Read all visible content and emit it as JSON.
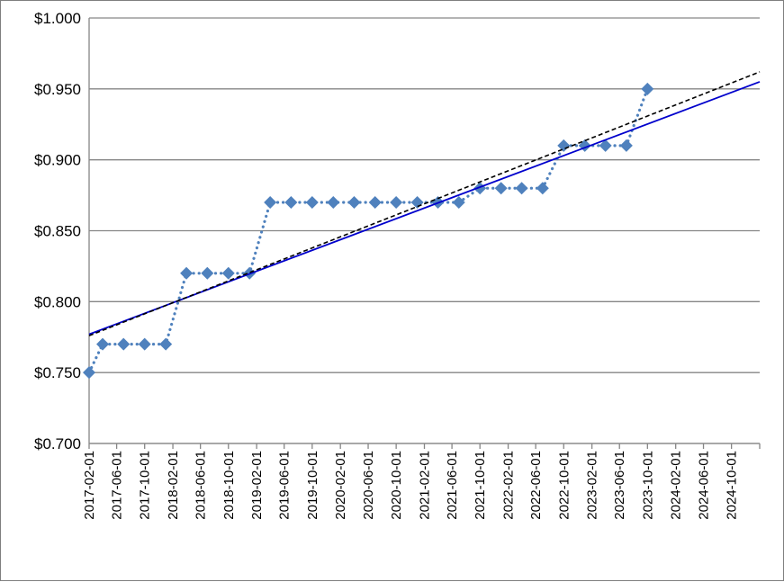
{
  "chart_data": {
    "type": "scatter",
    "title": "",
    "xlabel": "",
    "ylabel": "",
    "x_tick_labels": [
      "2017-02-01",
      "2017-06-01",
      "2017-10-01",
      "2018-02-01",
      "2018-06-01",
      "2018-10-01",
      "2019-02-01",
      "2019-06-01",
      "2019-10-01",
      "2020-02-01",
      "2020-06-01",
      "2020-10-01",
      "2021-02-01",
      "2021-06-01",
      "2021-10-01",
      "2022-02-01",
      "2022-06-01",
      "2022-10-01",
      "2023-02-01",
      "2023-06-01",
      "2023-10-01",
      "2024-02-01",
      "2024-06-01",
      "2024-10-01"
    ],
    "y_tick_labels": [
      "$0.700",
      "$0.750",
      "$0.800",
      "$0.850",
      "$0.900",
      "$0.950",
      "$1.000"
    ],
    "ylim": [
      0.7,
      1.0
    ],
    "xlim": [
      "2017-02-01",
      "2025-02-01"
    ],
    "grid": "horizontal",
    "legend": "none",
    "series": [
      {
        "style": "diamond markers with dotted connecting line",
        "color": "#4f81bd",
        "points": [
          {
            "x": "2017-02-01",
            "y": 0.75
          },
          {
            "x": "2017-04-01",
            "y": 0.77
          },
          {
            "x": "2017-07-01",
            "y": 0.77
          },
          {
            "x": "2017-10-01",
            "y": 0.77
          },
          {
            "x": "2018-01-01",
            "y": 0.77
          },
          {
            "x": "2018-04-01",
            "y": 0.82
          },
          {
            "x": "2018-07-01",
            "y": 0.82
          },
          {
            "x": "2018-10-01",
            "y": 0.82
          },
          {
            "x": "2019-01-01",
            "y": 0.82
          },
          {
            "x": "2019-04-01",
            "y": 0.87
          },
          {
            "x": "2019-07-01",
            "y": 0.87
          },
          {
            "x": "2019-10-01",
            "y": 0.87
          },
          {
            "x": "2020-01-01",
            "y": 0.87
          },
          {
            "x": "2020-04-01",
            "y": 0.87
          },
          {
            "x": "2020-07-01",
            "y": 0.87
          },
          {
            "x": "2020-10-01",
            "y": 0.87
          },
          {
            "x": "2021-01-01",
            "y": 0.87
          },
          {
            "x": "2021-04-01",
            "y": 0.87
          },
          {
            "x": "2021-07-01",
            "y": 0.87
          },
          {
            "x": "2021-10-01",
            "y": 0.88
          },
          {
            "x": "2022-01-01",
            "y": 0.88
          },
          {
            "x": "2022-04-01",
            "y": 0.88
          },
          {
            "x": "2022-07-01",
            "y": 0.88
          },
          {
            "x": "2022-10-01",
            "y": 0.91
          },
          {
            "x": "2023-01-01",
            "y": 0.91
          },
          {
            "x": "2023-04-01",
            "y": 0.91
          },
          {
            "x": "2023-07-01",
            "y": 0.91
          },
          {
            "x": "2023-10-01",
            "y": 0.95
          }
        ]
      }
    ],
    "trendlines": [
      {
        "style": "solid",
        "color": "#0000cc",
        "from": {
          "x": "2017-02-01",
          "y": 0.777
        },
        "to": {
          "x": "2025-02-01",
          "y": 0.955
        }
      },
      {
        "style": "dashed",
        "color": "#000000",
        "from": {
          "x": "2017-02-01",
          "y": 0.776
        },
        "to": {
          "x": "2025-02-01",
          "y": 0.962
        }
      }
    ]
  }
}
